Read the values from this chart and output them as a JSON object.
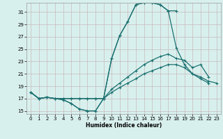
{
  "xlabel": "Humidex (Indice chaleur)",
  "bg_color": "#d8f0ed",
  "line_color": "#1a7070",
  "grid_color": "#c8b8bc",
  "xlim": [
    -0.5,
    23.5
  ],
  "ylim": [
    14.5,
    32.5
  ],
  "yticks": [
    15,
    17,
    19,
    21,
    23,
    25,
    27,
    29,
    31
  ],
  "xticks": [
    0,
    1,
    2,
    3,
    4,
    5,
    6,
    7,
    8,
    9,
    10,
    11,
    12,
    13,
    14,
    15,
    16,
    17,
    18,
    19,
    20,
    21,
    22,
    23
  ],
  "line1_x": [
    0,
    1,
    2,
    3,
    4,
    5,
    6,
    7,
    8,
    9,
    10,
    11,
    12,
    13,
    14,
    15,
    16,
    17,
    18
  ],
  "line1_y": [
    18.0,
    17.0,
    17.2,
    17.0,
    16.8,
    16.2,
    15.3,
    15.0,
    15.0,
    17.0,
    23.5,
    27.2,
    29.5,
    32.2,
    32.5,
    32.5,
    32.2,
    31.2,
    31.2
  ],
  "line2_x": [
    0,
    1,
    2,
    3,
    4,
    5,
    6,
    7,
    8,
    9,
    10,
    11,
    12,
    13,
    14,
    15,
    16,
    17,
    18,
    19,
    20,
    21,
    22
  ],
  "line2_y": [
    18.0,
    17.0,
    17.2,
    17.0,
    16.8,
    16.2,
    15.3,
    15.0,
    15.0,
    17.0,
    23.5,
    27.2,
    29.5,
    32.2,
    32.5,
    32.5,
    32.2,
    31.2,
    25.2,
    22.5,
    21.0,
    20.2,
    19.5
  ],
  "line3_x": [
    0,
    1,
    2,
    3,
    4,
    5,
    6,
    7,
    8,
    9,
    10,
    11,
    12,
    13,
    14,
    15,
    16,
    17,
    18,
    19,
    20,
    21,
    22
  ],
  "line3_y": [
    18.0,
    17.0,
    17.2,
    17.0,
    17.0,
    17.0,
    17.0,
    17.0,
    17.0,
    17.0,
    18.5,
    19.5,
    20.5,
    21.5,
    22.5,
    23.2,
    23.8,
    24.2,
    23.5,
    23.2,
    22.0,
    22.5,
    20.5
  ],
  "line4_x": [
    0,
    1,
    2,
    3,
    4,
    5,
    6,
    7,
    8,
    9,
    10,
    11,
    12,
    13,
    14,
    15,
    16,
    17,
    18,
    19,
    20,
    21,
    22,
    23
  ],
  "line4_y": [
    18.0,
    17.0,
    17.2,
    17.0,
    17.0,
    17.0,
    17.0,
    17.0,
    17.0,
    17.0,
    18.0,
    18.8,
    19.5,
    20.2,
    21.0,
    21.5,
    22.0,
    22.5,
    22.5,
    22.0,
    21.0,
    20.5,
    19.8,
    19.5
  ]
}
